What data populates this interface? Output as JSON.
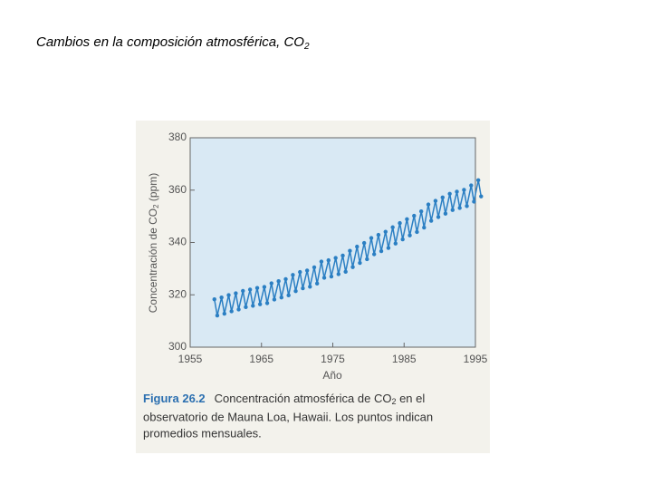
{
  "slide_title": [
    "Cambios en la composición atmosférica, CO",
    "2"
  ],
  "chart_data": {
    "type": "scatter",
    "ylabel": [
      "Concentración de CO",
      "2",
      " (ppm)"
    ],
    "xlabel": "Año",
    "xlim": [
      1955,
      1995
    ],
    "xticks": [
      1955,
      1965,
      1975,
      1985,
      1995
    ],
    "ylim": [
      300,
      380
    ],
    "yticks": [
      300,
      320,
      340,
      360,
      380
    ],
    "grid": false,
    "color": "#2b7fc3",
    "x": [
      1958.4,
      1958.8,
      1959.4,
      1959.8,
      1960.4,
      1960.8,
      1961.4,
      1961.8,
      1962.4,
      1962.8,
      1963.4,
      1963.8,
      1964.4,
      1964.8,
      1965.4,
      1965.8,
      1966.4,
      1966.8,
      1967.4,
      1967.8,
      1968.4,
      1968.8,
      1969.4,
      1969.8,
      1970.4,
      1970.8,
      1971.4,
      1971.8,
      1972.4,
      1972.8,
      1973.4,
      1973.8,
      1974.4,
      1974.8,
      1975.4,
      1975.8,
      1976.4,
      1976.8,
      1977.4,
      1977.8,
      1978.4,
      1978.8,
      1979.4,
      1979.8,
      1980.4,
      1980.8,
      1981.4,
      1981.8,
      1982.4,
      1982.8,
      1983.4,
      1983.8,
      1984.4,
      1984.8,
      1985.4,
      1985.8,
      1986.4,
      1986.8,
      1987.4,
      1987.8,
      1988.4,
      1988.8,
      1989.4,
      1989.8,
      1990.4,
      1990.8,
      1991.4,
      1991.8,
      1992.4,
      1992.8,
      1993.4,
      1993.8,
      1994.4,
      1994.8,
      1995.4,
      1995.8
    ],
    "values": [
      318.3,
      312.1,
      319.0,
      312.8,
      319.9,
      313.7,
      320.6,
      314.4,
      321.5,
      315.3,
      322.0,
      315.8,
      322.6,
      316.4,
      323.0,
      316.8,
      324.4,
      318.2,
      325.2,
      319.0,
      326.0,
      319.8,
      327.6,
      321.4,
      328.7,
      322.5,
      329.3,
      323.1,
      330.5,
      324.3,
      332.7,
      326.5,
      333.2,
      327.0,
      334.1,
      327.9,
      335.0,
      328.8,
      336.8,
      330.6,
      338.4,
      332.2,
      339.8,
      333.6,
      341.7,
      335.5,
      342.9,
      336.7,
      344.1,
      337.9,
      345.8,
      339.6,
      347.4,
      341.2,
      348.9,
      342.7,
      350.2,
      344.0,
      351.9,
      345.7,
      354.5,
      348.3,
      355.9,
      349.7,
      357.2,
      351.0,
      358.6,
      352.4,
      359.4,
      353.2,
      360.1,
      353.9,
      361.8,
      355.6,
      363.8,
      357.6
    ]
  },
  "caption": {
    "label": "Figura 26.2",
    "line1": [
      "Concentración atmosférica de CO",
      "2",
      " en el"
    ],
    "line2": "observatorio de Mauna Loa, Hawaii. Los puntos indican",
    "line3": "promedios mensuales."
  }
}
